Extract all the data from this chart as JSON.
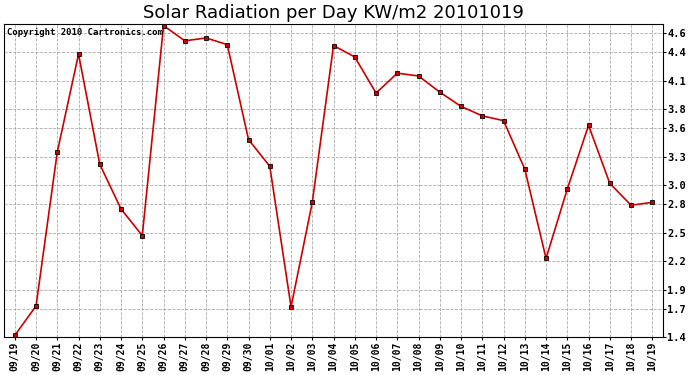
{
  "title": "Solar Radiation per Day KW/m2 20101019",
  "copyright_text": "Copyright 2010 Cartronics.com",
  "labels": [
    "09/19",
    "09/20",
    "09/21",
    "09/22",
    "09/23",
    "09/24",
    "09/25",
    "09/26",
    "09/27",
    "09/28",
    "09/29",
    "09/30",
    "10/01",
    "10/02",
    "10/03",
    "10/04",
    "10/05",
    "10/06",
    "10/07",
    "10/08",
    "10/09",
    "10/10",
    "10/11",
    "10/12",
    "10/13",
    "10/14",
    "10/15",
    "10/16",
    "10/17",
    "10/18",
    "10/19"
  ],
  "values": [
    1.42,
    1.73,
    3.35,
    4.38,
    3.22,
    2.75,
    2.47,
    4.68,
    4.52,
    4.55,
    4.48,
    3.48,
    3.2,
    1.72,
    2.82,
    4.47,
    4.35,
    3.97,
    4.18,
    4.15,
    3.98,
    3.83,
    3.73,
    3.68,
    3.17,
    2.23,
    2.96,
    3.63,
    3.02,
    2.79,
    2.82
  ],
  "line_color": "#cc0000",
  "marker_color": "#000000",
  "background_color": "#ffffff",
  "grid_color": "#aaaaaa",
  "ylim": [
    1.4,
    4.7
  ],
  "yticks": [
    1.4,
    1.7,
    1.9,
    2.2,
    2.5,
    2.8,
    3.0,
    3.3,
    3.6,
    3.8,
    4.1,
    4.4,
    4.6
  ],
  "title_fontsize": 13,
  "label_fontsize": 7,
  "copyright_fontsize": 6.5
}
